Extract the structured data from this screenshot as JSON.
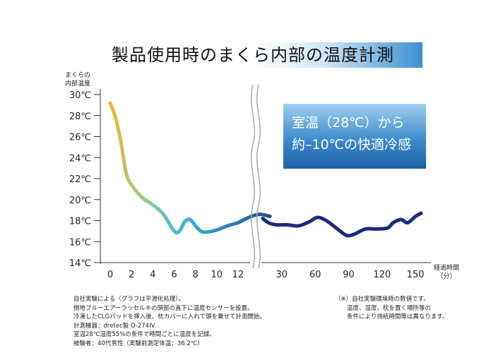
{
  "chart_data": {
    "type": "line",
    "title": "製品使用時のまくら内部の温度計測",
    "ylabel": [
      "まくらの",
      "内部温度"
    ],
    "xlabel": [
      "経過時間",
      "（分）"
    ],
    "ylim": [
      14,
      30
    ],
    "yticks": [
      "30℃",
      "28℃",
      "26℃",
      "24℃",
      "22℃",
      "20℃",
      "18℃",
      "16℃",
      "14℃"
    ],
    "ytick_values": [
      30,
      28,
      26,
      24,
      22,
      20,
      18,
      16,
      14
    ],
    "x_segments": [
      {
        "xlim": [
          0,
          13
        ],
        "ticks": [
          "0",
          "2",
          "4",
          "6",
          "8",
          "10",
          "12"
        ],
        "tick_values": [
          0,
          2,
          4,
          6,
          8,
          10,
          12
        ]
      },
      {
        "xlim": [
          13,
          155
        ],
        "ticks": [
          "30",
          "60",
          "90",
          "120",
          "150"
        ],
        "tick_values": [
          30,
          60,
          90,
          120,
          150
        ]
      }
    ],
    "series": [
      {
        "segment": 0,
        "points": [
          [
            0,
            29.2
          ],
          [
            0.5,
            27.8
          ],
          [
            1,
            25.5
          ],
          [
            1.5,
            22.5
          ],
          [
            2,
            21.4
          ],
          [
            3,
            20.2
          ],
          [
            4,
            19.5
          ],
          [
            5,
            18.6
          ],
          [
            6,
            17.0
          ],
          [
            6.5,
            17.0
          ],
          [
            7,
            17.9
          ],
          [
            7.5,
            18.1
          ],
          [
            8,
            17.5
          ],
          [
            8.5,
            17.0
          ],
          [
            9,
            16.9
          ],
          [
            10,
            17.1
          ],
          [
            11,
            17.5
          ],
          [
            12,
            17.8
          ],
          [
            13,
            18.3
          ],
          [
            14,
            18.6
          ],
          [
            15,
            18.4
          ]
        ]
      },
      {
        "segment": 1,
        "points": [
          [
            13,
            18.2
          ],
          [
            18,
            17.8
          ],
          [
            25,
            17.6
          ],
          [
            35,
            17.6
          ],
          [
            45,
            17.5
          ],
          [
            55,
            17.9
          ],
          [
            62,
            18.3
          ],
          [
            70,
            18.0
          ],
          [
            80,
            17.2
          ],
          [
            88,
            16.6
          ],
          [
            95,
            16.7
          ],
          [
            105,
            17.2
          ],
          [
            115,
            17.2
          ],
          [
            125,
            17.3
          ],
          [
            130,
            17.8
          ],
          [
            137,
            18.1
          ],
          [
            143,
            17.8
          ],
          [
            150,
            18.4
          ],
          [
            155,
            18.7
          ]
        ]
      }
    ],
    "gradient_colors": [
      "#f2b233",
      "#8fcf8d",
      "#3ab4e6",
      "#1a2b7a"
    ],
    "grid": false,
    "callout": [
      "室温（28℃）から",
      "約–10℃の快適冷感"
    ]
  },
  "notes_left": [
    "自社実験による（グラフは平滑化処理）。",
    "側地ブルーエアーラッセル®の頭部の直下に温度センサーを設置。",
    "冷凍したCLGパッドを挿入後、枕カバーに入れて頭を乗せて計測開始。",
    "計測機器：dretec製 O-274IV",
    "室温28℃湿度55%の条件で時間ごとに温度を記録。",
    "被験者：40代男性（実験前測定体温：36.2℃）"
  ],
  "notes_right": [
    "（※）自社実験環境時の数値です。",
    "　　温度、湿度、枕を置く場所等の",
    "　　条件により持続時間等は異なります。"
  ]
}
